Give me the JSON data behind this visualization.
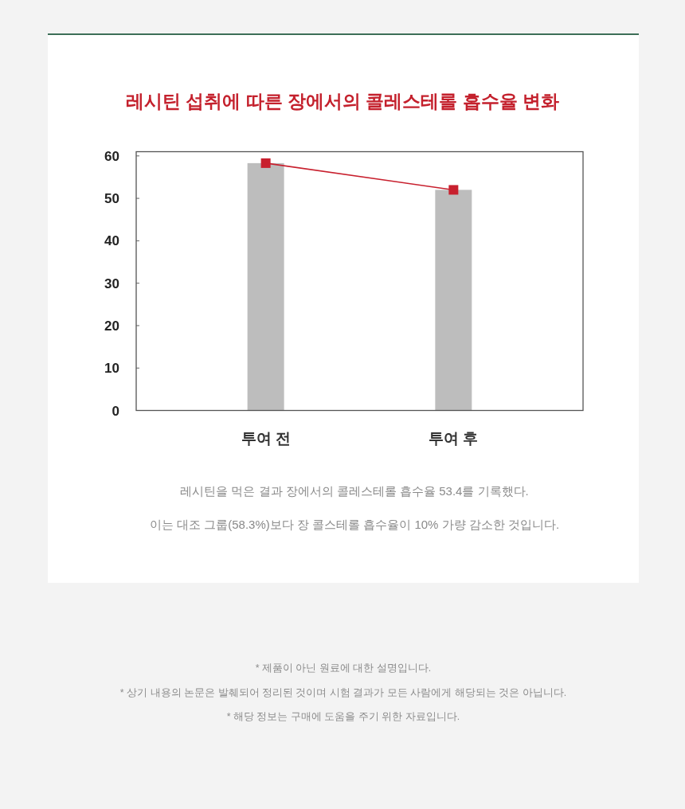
{
  "chart_data": {
    "type": "bar",
    "title": "레시틴 섭취에 따른 장에서의 콜레스테롤 흡수율 변화",
    "categories": [
      "투여 전",
      "투여 후"
    ],
    "series": [
      {
        "color": "#bdbdbd",
        "values": [
          58.3,
          52
        ]
      },
      {
        "type": "line",
        "color": "#c8202e",
        "values": [
          58.3,
          52
        ]
      }
    ],
    "marker": "square",
    "line_style": "solid",
    "ylim": [
      0,
      61
    ],
    "yticks": [
      0,
      10,
      20,
      30,
      40,
      50,
      60
    ],
    "annotations": [
      "레시틴을 먹은 결과 장에서의 콜레스테롤 흡수율 53.4를 기록했다.",
      "이는 대조 그룹(58.3%)보다 장 콜스테롤 흡수율이 10% 가량 감소한 것입니다.",
      "* 제품이 아닌 원료에 대한 설명입니다.",
      "* 상기 내용의 논문은 발췌되어 정리된 것이며 시험 결과가 모든 사람에게 해당되는 것은 아닙니다.",
      "* 해당 정보는 구매에 도움을 주기 위한 자료입니다."
    ]
  }
}
